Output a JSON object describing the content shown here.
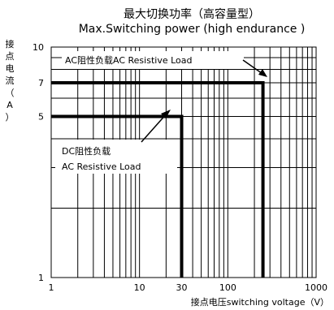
{
  "chart_data": {
    "type": "line",
    "title": "最大切换功率（高容量型）",
    "subtitle": "Max.Switching power (high endurance )",
    "xlabel": "接点电压switching voltage（V）",
    "ylabel_chars": [
      "接",
      "点",
      "电",
      "流",
      "（",
      "A",
      "）"
    ],
    "x_scale": "log",
    "y_scale": "log",
    "xlim": [
      1,
      1000
    ],
    "ylim": [
      1,
      10
    ],
    "x_ticks": [
      {
        "value": 1,
        "label": "1"
      },
      {
        "value": 10,
        "label": "10"
      },
      {
        "value": 30,
        "label": "30"
      },
      {
        "value": 100,
        "label": "100"
      },
      {
        "value": 1000,
        "label": "1000"
      }
    ],
    "y_ticks": [
      {
        "value": 1,
        "label": "1"
      },
      {
        "value": 5,
        "label": "5"
      },
      {
        "value": 7,
        "label": "7"
      },
      {
        "value": 10,
        "label": "10"
      }
    ],
    "grid": true,
    "series": [
      {
        "x": [
          1,
          250,
          250
        ],
        "y": [
          7,
          7,
          1
        ]
      },
      {
        "x": [
          1,
          30,
          30
        ],
        "y": [
          5,
          5,
          1
        ]
      }
    ],
    "annotations": [
      {
        "line1": "AC阻性负载AC Resistive  Load"
      },
      {
        "line1": "DC阻性负载",
        "line2": "AC Resistive  Load"
      }
    ]
  }
}
